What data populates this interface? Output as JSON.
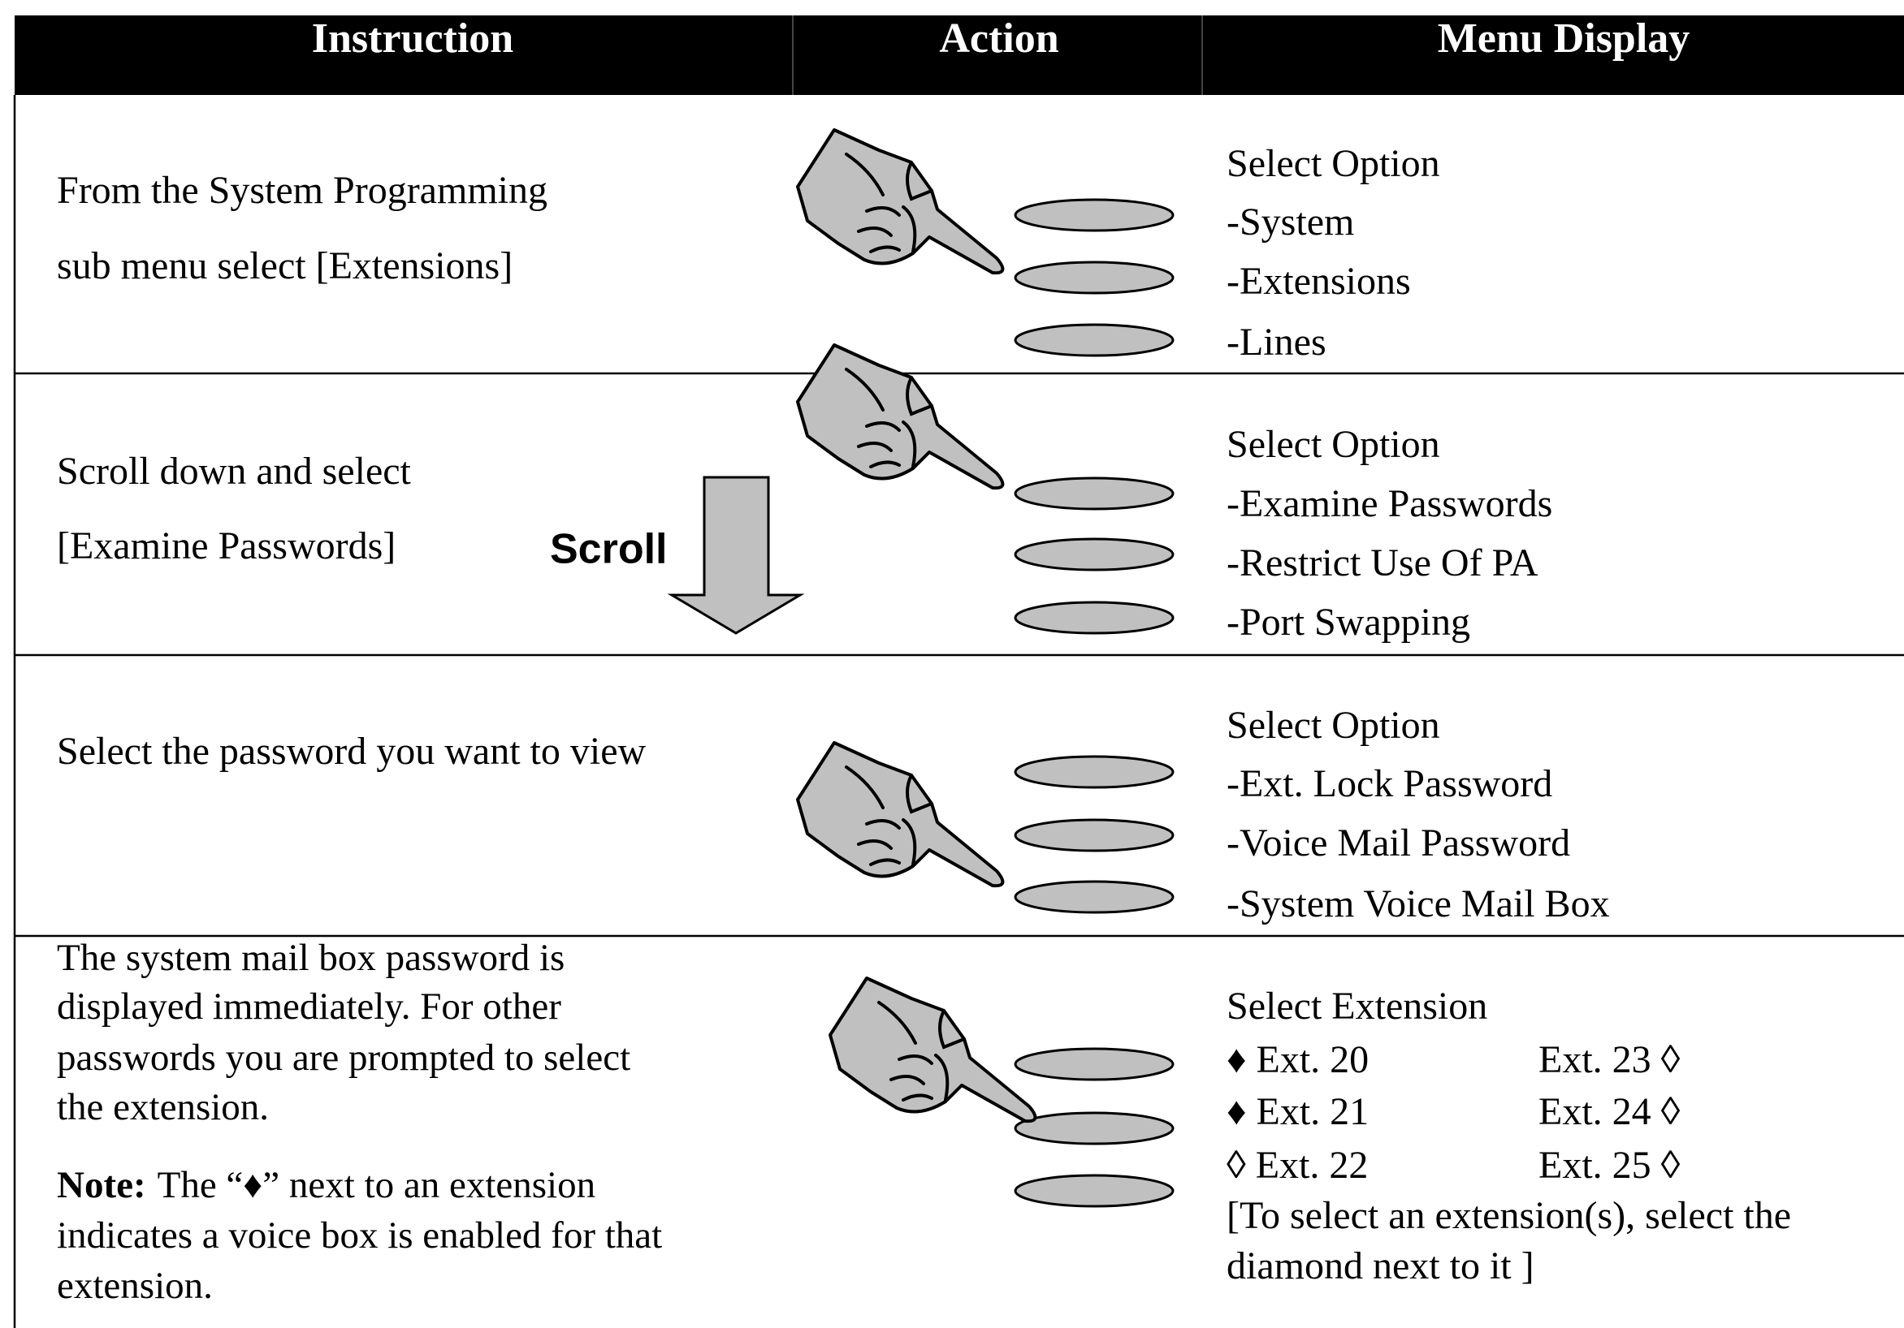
{
  "table": {
    "headers": [
      "Instruction",
      "Action",
      "Menu Display"
    ],
    "rows": [
      {
        "instruction": [
          "From the System Programming",
          "sub menu select [Extensions]"
        ],
        "menu": [
          "Select Option",
          "-System",
          "-Extensions",
          "-Lines"
        ]
      },
      {
        "instruction": [
          "Scroll down and select",
          "[Examine Passwords]"
        ],
        "action_label": "Scroll",
        "menu": [
          "Select Option",
          "-Examine Passwords",
          "-Restrict Use Of PA",
          "-Port Swapping"
        ]
      },
      {
        "instruction": [
          "Select the password you want to view"
        ],
        "menu": [
          "Select Option",
          "-Ext. Lock Password",
          "-Voice Mail Password",
          "-System Voice Mail Box"
        ]
      },
      {
        "instruction": [
          "The system mail box password is",
          "displayed immediately. For other",
          "passwords you are prompted to select",
          "the extension."
        ],
        "note": {
          "label": "Note:",
          "lines": [
            "The “♦” next to an extension",
            "indicates a voice box is enabled for that",
            "extension."
          ]
        },
        "menu_title": "Select Extension",
        "extensions": [
          [
            "♦ Ext. 20",
            "Ext. 23 ◊"
          ],
          [
            "♦ Ext. 21",
            "Ext. 24 ◊"
          ],
          [
            "◊ Ext. 22",
            "Ext. 25 ◊"
          ]
        ],
        "menu_footer": [
          "[To select an extension(s), select the",
          "diamond next to it ]"
        ]
      }
    ]
  }
}
